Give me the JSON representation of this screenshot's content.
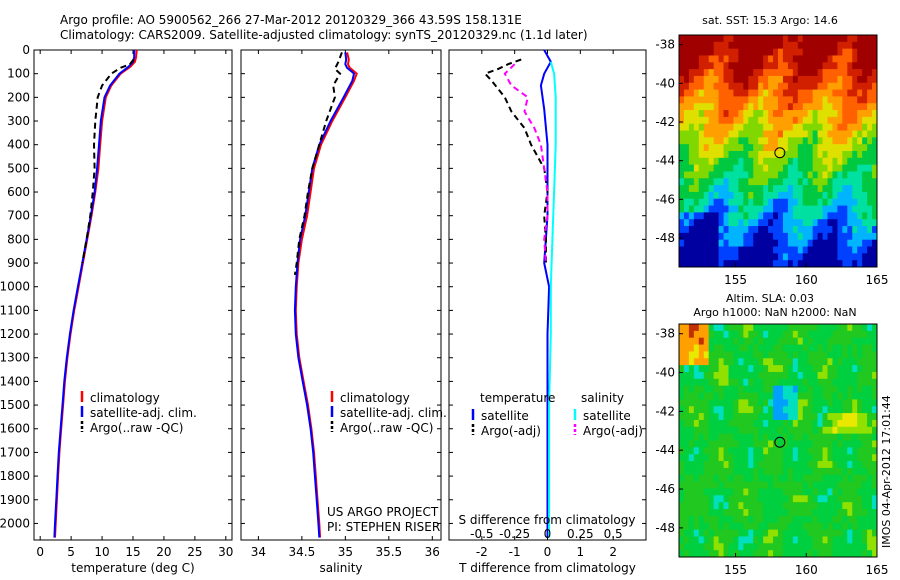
{
  "header": {
    "title_line1": "Argo profile: AO 5900562_266 27-Mar-2012 20120329_366 43.59S 158.131E",
    "title_line2": "Climatology: CARS2009. Satellite-adjusted climatology: synTS_20120329.nc (1.1d later)"
  },
  "project": {
    "line1": "US ARGO PROJECT",
    "line2": "PI: STEPHEN RISER"
  },
  "stamp": "IMOS 04-Apr-2012 17:01:44",
  "colors": {
    "climatology": "#ff0000",
    "satellite": "#0000ff",
    "argo": "#000000",
    "sat_salinity": "#00ffff",
    "argo_salinity_adj": "#ff00ff"
  },
  "chart_data": [
    {
      "type": "line",
      "id": "temperature",
      "xlabel": "temperature (deg C)",
      "ylabel": "",
      "xlim": [
        -1,
        31
      ],
      "ylim": [
        2070,
        0
      ],
      "xticks": [
        0,
        5,
        10,
        15,
        20,
        25,
        30
      ],
      "yticks": [
        0,
        100,
        200,
        300,
        400,
        500,
        600,
        700,
        800,
        900,
        1000,
        1100,
        1200,
        1300,
        1400,
        1500,
        1600,
        1700,
        1800,
        1900,
        2000
      ],
      "legend": [
        "climatology",
        "satellite-adj. clim.",
        "Argo(..raw -QC)"
      ],
      "series": [
        {
          "name": "climatology",
          "color": "#ff0000",
          "style": "solid",
          "points": [
            [
              15.6,
              0
            ],
            [
              15.5,
              30
            ],
            [
              15.3,
              50
            ],
            [
              14.6,
              70
            ],
            [
              13,
              100
            ],
            [
              11.5,
              150
            ],
            [
              10.6,
              200
            ],
            [
              10,
              300
            ],
            [
              9.7,
              400
            ],
            [
              9.4,
              500
            ],
            [
              8.9,
              600
            ],
            [
              8.3,
              700
            ],
            [
              7.6,
              800
            ],
            [
              6.9,
              900
            ],
            [
              6.2,
              1000
            ],
            [
              5.5,
              1100
            ],
            [
              4.9,
              1200
            ],
            [
              4.4,
              1300
            ],
            [
              4,
              1400
            ],
            [
              3.7,
              1500
            ],
            [
              3.4,
              1600
            ],
            [
              3.1,
              1700
            ],
            [
              2.9,
              1800
            ],
            [
              2.7,
              1900
            ],
            [
              2.5,
              2000
            ],
            [
              2.4,
              2060
            ]
          ]
        },
        {
          "name": "satellite-adj. clim.",
          "color": "#0000ff",
          "style": "solid",
          "points": [
            [
              15.2,
              0
            ],
            [
              15.2,
              30
            ],
            [
              15,
              50
            ],
            [
              14.3,
              70
            ],
            [
              12.8,
              100
            ],
            [
              11.3,
              150
            ],
            [
              10.4,
              200
            ],
            [
              9.8,
              300
            ],
            [
              9.5,
              400
            ],
            [
              9.2,
              500
            ],
            [
              8.8,
              600
            ],
            [
              8.2,
              700
            ],
            [
              7.5,
              800
            ],
            [
              6.8,
              900
            ],
            [
              6.1,
              1000
            ],
            [
              5.4,
              1100
            ],
            [
              4.8,
              1200
            ],
            [
              4.3,
              1300
            ],
            [
              3.9,
              1400
            ],
            [
              3.6,
              1500
            ],
            [
              3.3,
              1600
            ],
            [
              3,
              1700
            ],
            [
              2.8,
              1800
            ],
            [
              2.6,
              1900
            ],
            [
              2.4,
              2000
            ],
            [
              2.3,
              2060
            ]
          ]
        },
        {
          "name": "Argo(..raw -QC)",
          "color": "#000000",
          "style": "dashed",
          "points": [
            [
              15.1,
              40
            ],
            [
              14.5,
              60
            ],
            [
              13,
              75
            ],
            [
              11.5,
              100
            ],
            [
              10,
              150
            ],
            [
              9.3,
              200
            ],
            [
              8.9,
              300
            ],
            [
              8.7,
              400
            ],
            [
              8.8,
              500
            ],
            [
              8.5,
              600
            ],
            [
              8.1,
              700
            ],
            [
              7.5,
              800
            ],
            [
              6.8,
              900
            ]
          ]
        }
      ]
    },
    {
      "type": "line",
      "id": "salinity",
      "xlabel": "salinity",
      "ylabel": "",
      "xlim": [
        33.8,
        36.1
      ],
      "ylim": [
        2070,
        0
      ],
      "xticks": [
        34,
        34.5,
        35,
        35.5,
        36
      ],
      "yticks": [
        0,
        100,
        200,
        300,
        400,
        500,
        600,
        700,
        800,
        900,
        1000,
        1100,
        1200,
        1300,
        1400,
        1500,
        1600,
        1700,
        1800,
        1900,
        2000
      ],
      "legend": [
        "climatology",
        "satellite-adj. clim.",
        "Argo(..raw -QC)"
      ],
      "series": [
        {
          "name": "climatology",
          "color": "#ff0000",
          "style": "solid",
          "points": [
            [
              35.02,
              10
            ],
            [
              35.04,
              40
            ],
            [
              35.03,
              60
            ],
            [
              35.05,
              75
            ],
            [
              35.1,
              90
            ],
            [
              35.13,
              100
            ],
            [
              35.1,
              130
            ],
            [
              35,
              200
            ],
            [
              34.85,
              300
            ],
            [
              34.72,
              400
            ],
            [
              34.64,
              500
            ],
            [
              34.6,
              600
            ],
            [
              34.56,
              700
            ],
            [
              34.5,
              800
            ],
            [
              34.46,
              900
            ],
            [
              34.44,
              1000
            ],
            [
              34.43,
              1100
            ],
            [
              34.44,
              1200
            ],
            [
              34.47,
              1300
            ],
            [
              34.52,
              1400
            ],
            [
              34.57,
              1500
            ],
            [
              34.61,
              1600
            ],
            [
              34.64,
              1700
            ],
            [
              34.66,
              1800
            ],
            [
              34.68,
              1900
            ],
            [
              34.7,
              2000
            ],
            [
              34.71,
              2060
            ]
          ]
        },
        {
          "name": "satellite-adj. clim.",
          "color": "#0000ff",
          "style": "solid",
          "points": [
            [
              35,
              10
            ],
            [
              35.01,
              40
            ],
            [
              35,
              60
            ],
            [
              35.02,
              75
            ],
            [
              35.07,
              90
            ],
            [
              35.1,
              100
            ],
            [
              35.08,
              130
            ],
            [
              34.98,
              200
            ],
            [
              34.83,
              300
            ],
            [
              34.7,
              400
            ],
            [
              34.62,
              500
            ],
            [
              34.58,
              600
            ],
            [
              34.54,
              700
            ],
            [
              34.48,
              800
            ],
            [
              34.45,
              900
            ],
            [
              34.43,
              1000
            ],
            [
              34.42,
              1100
            ],
            [
              34.43,
              1200
            ],
            [
              34.46,
              1300
            ],
            [
              34.51,
              1400
            ],
            [
              34.56,
              1500
            ],
            [
              34.6,
              1600
            ],
            [
              34.63,
              1700
            ],
            [
              34.65,
              1800
            ],
            [
              34.67,
              1900
            ],
            [
              34.69,
              2000
            ],
            [
              34.7,
              2060
            ]
          ]
        },
        {
          "name": "Argo(..raw -QC)",
          "color": "#000000",
          "style": "dashed",
          "points": [
            [
              34.96,
              10
            ],
            [
              34.92,
              50
            ],
            [
              34.88,
              80
            ],
            [
              34.94,
              100
            ],
            [
              34.86,
              150
            ],
            [
              34.88,
              200
            ],
            [
              34.78,
              300
            ],
            [
              34.7,
              400
            ],
            [
              34.62,
              500
            ],
            [
              34.57,
              600
            ],
            [
              34.53,
              700
            ],
            [
              34.47,
              800
            ],
            [
              34.44,
              900
            ],
            [
              34.42,
              950
            ]
          ]
        }
      ]
    },
    {
      "type": "line",
      "id": "difference",
      "xlabel": "T difference from climatology",
      "xlabel_top": "S difference from climatology",
      "ylabel": "",
      "xlim": [
        -3,
        3
      ],
      "ylim": [
        2070,
        0
      ],
      "xticks": [
        -2,
        -1,
        0,
        1,
        2
      ],
      "xticks_s": [
        "-0.5",
        "-0.25",
        "0",
        "0.25",
        "0.5"
      ],
      "yticks": [
        0,
        100,
        200,
        300,
        400,
        500,
        600,
        700,
        800,
        900,
        1000,
        1100,
        1200,
        1300,
        1400,
        1500,
        1600,
        1700,
        1800,
        1900,
        2000
      ],
      "legend_headers": [
        "temperature",
        "salinity"
      ],
      "legend": [
        "satellite",
        "Argo(-adj)",
        "satellite",
        "Argo(-adj)"
      ],
      "series": [
        {
          "name": "satellite",
          "group": "temperature",
          "color": "#0000ff",
          "style": "solid",
          "points": [
            [
              -0.1,
              0
            ],
            [
              0.1,
              50
            ],
            [
              -0.1,
              100
            ],
            [
              -0.2,
              150
            ],
            [
              -0.1,
              250
            ],
            [
              0,
              400
            ],
            [
              0,
              500
            ],
            [
              0,
              700
            ],
            [
              -0.1,
              900
            ],
            [
              0.05,
              1000
            ],
            [
              0,
              1200
            ],
            [
              0,
              1600
            ],
            [
              0,
              2060
            ]
          ]
        },
        {
          "name": "Argo(-adj)",
          "group": "temperature",
          "color": "#000000",
          "style": "dashed",
          "points": [
            [
              -0.8,
              40
            ],
            [
              -1.2,
              60
            ],
            [
              -1.5,
              80
            ],
            [
              -1.9,
              100
            ],
            [
              -1.7,
              130
            ],
            [
              -1.3,
              200
            ],
            [
              -1.1,
              260
            ],
            [
              -0.7,
              330
            ],
            [
              -0.5,
              400
            ],
            [
              -0.1,
              500
            ],
            [
              0,
              600
            ],
            [
              -0.1,
              700
            ],
            [
              -0.05,
              800
            ],
            [
              -0.05,
              900
            ]
          ]
        },
        {
          "name": "satellite",
          "group": "salinity",
          "color": "#00ffff",
          "style": "solid",
          "points": [
            [
              0.1,
              50
            ],
            [
              0.2,
              100
            ],
            [
              0.25,
              200
            ],
            [
              0.25,
              400
            ],
            [
              0.2,
              600
            ],
            [
              0.15,
              800
            ],
            [
              0.1,
              1000
            ],
            [
              0.1,
              1200
            ],
            [
              0.05,
              1500
            ],
            [
              0.05,
              2060
            ]
          ]
        },
        {
          "name": "Argo(-adj)",
          "group": "salinity",
          "color": "#ff00ff",
          "style": "dashed",
          "points": [
            [
              -1,
              60
            ],
            [
              -1.3,
              100
            ],
            [
              -1.1,
              150
            ],
            [
              -0.6,
              200
            ],
            [
              -0.7,
              260
            ],
            [
              -0.4,
              330
            ],
            [
              -0.2,
              400
            ],
            [
              -0.1,
              500
            ],
            [
              0,
              600
            ],
            [
              0,
              700
            ],
            [
              -0.1,
              800
            ],
            [
              -0.05,
              900
            ]
          ]
        }
      ]
    },
    {
      "type": "heatmap",
      "id": "sst-map",
      "title": "sat. SST: 15.3  Argo: 14.6",
      "xlim": [
        151,
        165
      ],
      "ylim": [
        -49.5,
        -37.5
      ],
      "xticks": [
        155,
        160,
        165
      ],
      "yticks": [
        -48,
        -46,
        -44,
        -42,
        -40,
        -38
      ],
      "marker": [
        158.131,
        -43.59
      ],
      "palette": [
        "#0000a0",
        "#0040ff",
        "#00b4ff",
        "#00e0a0",
        "#00c840",
        "#80d800",
        "#e0e000",
        "#ffa000",
        "#ff6000",
        "#d02000",
        "#a00000"
      ],
      "colorbar": false
    },
    {
      "type": "heatmap",
      "id": "sla-map",
      "title": "Altim. SLA: 0.03",
      "subtitle": "Argo h1000: NaN h2000: NaN",
      "xlim": [
        151,
        165
      ],
      "ylim": [
        -49.5,
        -37.5
      ],
      "xticks": [
        155,
        160,
        165
      ],
      "yticks": [
        -48,
        -46,
        -44,
        -42,
        -40,
        -38
      ],
      "marker": [
        158.131,
        -43.59
      ],
      "palette": [
        "#00a0ff",
        "#00e0c0",
        "#00d040",
        "#20c820",
        "#90e000",
        "#e8e800",
        "#ffa000",
        "#c03000"
      ],
      "colorbar": false
    }
  ]
}
